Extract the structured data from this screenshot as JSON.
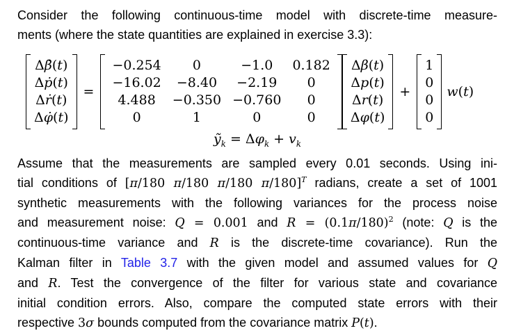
{
  "colors": {
    "background": "#ffffff",
    "text": "#000000",
    "link_blue": "#2323e8"
  },
  "paragraph1": {
    "lines": [
      [
        {
          "t": "Consider the following continuous-time model with discrete-time measure-",
          "s": "sans"
        }
      ],
      [
        {
          "t": "ments (where the state quantities are explained in exercise 3.3):",
          "s": "sans"
        }
      ]
    ]
  },
  "equation1": {
    "lhs": [
      [
        {
          "t": "Δ",
          "s": "math"
        },
        {
          "t": "β̇",
          "s": "mathi"
        },
        {
          "t": "(",
          "s": "math"
        },
        {
          "t": "t",
          "s": "mathi"
        },
        {
          "t": ")",
          "s": "math"
        }
      ],
      [
        {
          "t": "Δ",
          "s": "math"
        },
        {
          "t": "ṗ",
          "s": "mathi"
        },
        {
          "t": "(",
          "s": "math"
        },
        {
          "t": "t",
          "s": "mathi"
        },
        {
          "t": ")",
          "s": "math"
        }
      ],
      [
        {
          "t": "Δ",
          "s": "math"
        },
        {
          "t": "ṙ",
          "s": "mathi"
        },
        {
          "t": "(",
          "s": "math"
        },
        {
          "t": "t",
          "s": "mathi"
        },
        {
          "t": ")",
          "s": "math"
        }
      ],
      [
        {
          "t": "Δ",
          "s": "math"
        },
        {
          "t": "φ̇",
          "s": "mathi"
        },
        {
          "t": "(",
          "s": "math"
        },
        {
          "t": "t",
          "s": "mathi"
        },
        {
          "t": ")",
          "s": "math"
        }
      ]
    ],
    "equals": "=",
    "A": [
      [
        "−0.254",
        "0",
        "−1.0",
        "0.182"
      ],
      [
        "−16.02",
        "−8.40",
        "−2.19",
        "0"
      ],
      [
        "4.488",
        "−0.350",
        "−0.760",
        "0"
      ],
      [
        "0",
        "1",
        "0",
        "0"
      ]
    ],
    "state": [
      [
        {
          "t": "Δ",
          "s": "math"
        },
        {
          "t": "β",
          "s": "mathi"
        },
        {
          "t": "(",
          "s": "math"
        },
        {
          "t": "t",
          "s": "mathi"
        },
        {
          "t": ")",
          "s": "math"
        }
      ],
      [
        {
          "t": "Δ",
          "s": "math"
        },
        {
          "t": "p",
          "s": "mathi"
        },
        {
          "t": "(",
          "s": "math"
        },
        {
          "t": "t",
          "s": "mathi"
        },
        {
          "t": ")",
          "s": "math"
        }
      ],
      [
        {
          "t": "Δ",
          "s": "math"
        },
        {
          "t": "r",
          "s": "mathi"
        },
        {
          "t": "(",
          "s": "math"
        },
        {
          "t": "t",
          "s": "mathi"
        },
        {
          "t": ")",
          "s": "math"
        }
      ],
      [
        {
          "t": "Δ",
          "s": "math"
        },
        {
          "t": "φ",
          "s": "mathi"
        },
        {
          "t": "(",
          "s": "math"
        },
        {
          "t": "t",
          "s": "mathi"
        },
        {
          "t": ")",
          "s": "math"
        }
      ]
    ],
    "plus": "+",
    "B": [
      [
        {
          "t": "1",
          "s": "math"
        }
      ],
      [
        {
          "t": "0",
          "s": "math"
        }
      ],
      [
        {
          "t": "0",
          "s": "math"
        }
      ],
      [
        {
          "t": "0",
          "s": "math"
        }
      ]
    ],
    "w_line": [
      [
        {
          "t": "w",
          "s": "mathi"
        },
        {
          "t": "(",
          "s": "math"
        },
        {
          "t": "t",
          "s": "mathi"
        },
        {
          "t": ")",
          "s": "math"
        }
      ]
    ]
  },
  "equation2": {
    "lines": [
      [
        {
          "t": "ỹ",
          "s": "mathi"
        },
        {
          "t": "k",
          "s": "sub"
        },
        {
          "t": " = ",
          "s": "math"
        },
        {
          "t": "Δ",
          "s": "math"
        },
        {
          "t": "φ",
          "s": "mathi"
        },
        {
          "t": "k",
          "s": "sub"
        },
        {
          "t": " + ",
          "s": "math"
        },
        {
          "t": "v",
          "s": "mathi"
        },
        {
          "t": "k",
          "s": "sub"
        }
      ]
    ]
  },
  "paragraph2": {
    "lines": [
      [
        {
          "t": "Assume that the measurements are sampled every 0.01 seconds. Using ini-",
          "s": "sans"
        }
      ],
      [
        {
          "t": "tial conditions of ",
          "s": "sans"
        },
        {
          "t": "[",
          "s": "math"
        },
        {
          "t": "π",
          "s": "mathi"
        },
        {
          "t": "/180 ",
          "s": "math"
        },
        {
          "t": "π",
          "s": "mathi"
        },
        {
          "t": "/180 ",
          "s": "math"
        },
        {
          "t": "π",
          "s": "mathi"
        },
        {
          "t": "/180 ",
          "s": "math"
        },
        {
          "t": "π",
          "s": "mathi"
        },
        {
          "t": "/180]",
          "s": "math"
        },
        {
          "t": "T",
          "s": "supi"
        },
        {
          "t": " radians, create a set of 1001",
          "s": "sans"
        }
      ],
      [
        {
          "t": "synthetic measurements with the following variances for the process noise",
          "s": "sans"
        }
      ],
      [
        {
          "t": "and measurement noise: ",
          "s": "sans"
        },
        {
          "t": "Q",
          "s": "mathi"
        },
        {
          "t": " = 0.001",
          "s": "math"
        },
        {
          "t": " and ",
          "s": "sans"
        },
        {
          "t": "R",
          "s": "mathi"
        },
        {
          "t": " = (0.1",
          "s": "math"
        },
        {
          "t": "π",
          "s": "mathi"
        },
        {
          "t": "/180)",
          "s": "math"
        },
        {
          "t": "2",
          "s": "sup"
        },
        {
          "t": " (note: ",
          "s": "sans"
        },
        {
          "t": "Q",
          "s": "mathi"
        },
        {
          "t": " is the",
          "s": "sans"
        }
      ],
      [
        {
          "t": "continuous-time variance and ",
          "s": "sans"
        },
        {
          "t": "R",
          "s": "mathi"
        },
        {
          "t": " is the discrete-time covariance). Run the",
          "s": "sans"
        }
      ],
      [
        {
          "t": "Kalman filter in ",
          "s": "sans"
        },
        {
          "t": "Table 3.7",
          "s": "link"
        },
        {
          "t": " with the given model and assumed values for ",
          "s": "sans"
        },
        {
          "t": "Q",
          "s": "mathi"
        }
      ],
      [
        {
          "t": "and ",
          "s": "sans"
        },
        {
          "t": "R",
          "s": "mathi"
        },
        {
          "t": ". Test the convergence of the filter for various state and covariance",
          "s": "sans"
        }
      ],
      [
        {
          "t": "initial condition errors. Also, compare the computed state errors with their",
          "s": "sans"
        }
      ],
      [
        {
          "t": "respective ",
          "s": "sans"
        },
        {
          "t": "3",
          "s": "math"
        },
        {
          "t": "σ",
          "s": "mathi"
        },
        {
          "t": " bounds computed from the covariance matrix ",
          "s": "sans"
        },
        {
          "t": "P",
          "s": "mathi"
        },
        {
          "t": "(",
          "s": "math"
        },
        {
          "t": "t",
          "s": "mathi"
        },
        {
          "t": ")",
          "s": "math"
        },
        {
          "t": ".",
          "s": "sans"
        }
      ]
    ]
  }
}
